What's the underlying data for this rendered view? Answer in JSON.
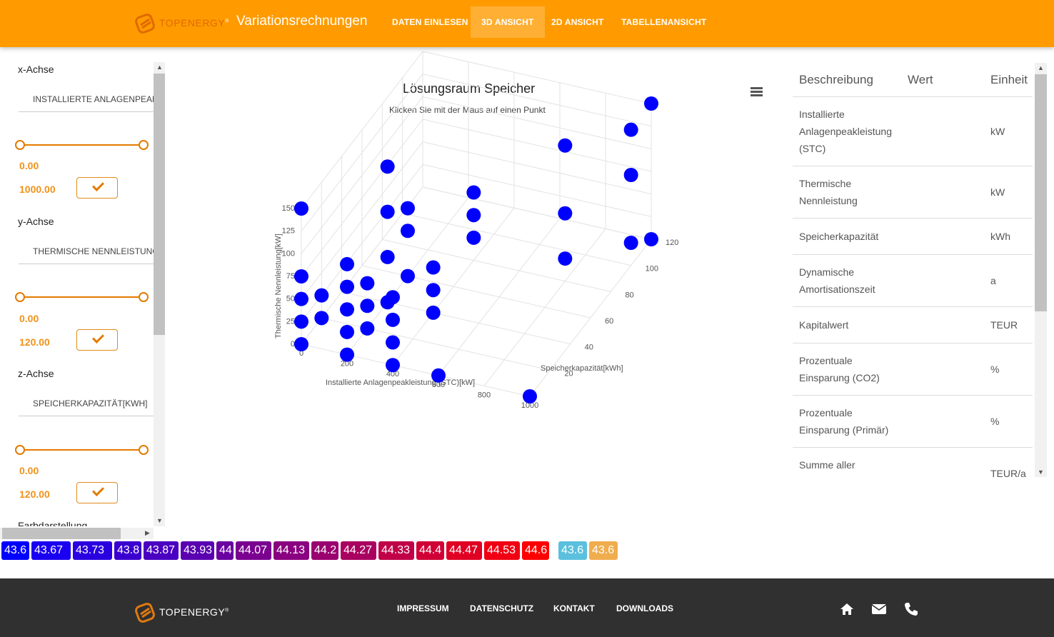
{
  "header": {
    "logo_text": "TOPENERGY",
    "logo_reg": "®",
    "title": "Variationsrechnungen",
    "nav": [
      {
        "label": "DATEN EINLESEN",
        "active": false
      },
      {
        "label": "3D ANSICHT",
        "active": true
      },
      {
        "label": "2D ANSICHT",
        "active": false
      },
      {
        "label": "TABELLENANSICHT",
        "active": false
      }
    ],
    "colors": {
      "brand": "#ff9b00",
      "accent": "#e37b00"
    }
  },
  "sidebar": {
    "x_axis": {
      "label": "x-Achse",
      "selected": "INSTALLIERTE ANLAGENPEAKLEISTUNG (STC)[KW]",
      "min": "0.00",
      "max": "1000.00"
    },
    "y_axis": {
      "label": "y-Achse",
      "selected": "THERMISCHE NENNLEISTUNG[KW]",
      "min": "0.00",
      "max": "120.00"
    },
    "z_axis": {
      "label": "z-Achse",
      "selected": "SPEICHERKAPAZITÄT[KWH]",
      "min": "0.00",
      "max": "120.00"
    },
    "color_section": "Farbdarstellung",
    "confirm_icon": "check-icon"
  },
  "chart": {
    "menu_icon": "hamburger-menu-icon"
  },
  "chart_data": {
    "type": "scatter",
    "title": "Lösungsraum Speicher",
    "subtitle": "Klicken Sie mit der Maus auf einen Punkt",
    "xlabel": "Installierte Anlagenpeakleistung (STC)[kW]",
    "ylabel": "Thermische Nennleistung[kW]",
    "zlabel": "Speicherkapazität[kWh]",
    "x_ticks": [
      "0",
      "200",
      "400",
      "600",
      "800",
      "1000"
    ],
    "y_ticks": [
      "0",
      "25",
      "50",
      "75",
      "100",
      "125",
      "150"
    ],
    "z_ticks": [
      "20",
      "40",
      "60",
      "80",
      "100",
      "120"
    ],
    "xlim": [
      0,
      1000
    ],
    "ylim": [
      0,
      150
    ],
    "zlim": [
      0,
      120
    ],
    "grid": true,
    "marker_color": "#0000ff",
    "series": [
      {
        "values": [
          {
            "x": 0,
            "y": 0,
            "z": 0
          },
          {
            "x": 0,
            "y": 25,
            "z": 0
          },
          {
            "x": 0,
            "y": 50,
            "z": 0
          },
          {
            "x": 0,
            "y": 75,
            "z": 0
          },
          {
            "x": 0,
            "y": 150,
            "z": 0
          },
          {
            "x": 200,
            "y": 0,
            "z": 0
          },
          {
            "x": 200,
            "y": 25,
            "z": 0
          },
          {
            "x": 200,
            "y": 50,
            "z": 0
          },
          {
            "x": 200,
            "y": 75,
            "z": 0
          },
          {
            "x": 200,
            "y": 100,
            "z": 0
          },
          {
            "x": 0,
            "y": 25,
            "z": 20
          },
          {
            "x": 0,
            "y": 0,
            "z": 20
          },
          {
            "x": 200,
            "y": 0,
            "z": 20
          },
          {
            "x": 200,
            "y": 25,
            "z": 20
          },
          {
            "x": 200,
            "y": 50,
            "z": 20
          },
          {
            "x": 400,
            "y": 0,
            "z": 0
          },
          {
            "x": 400,
            "y": 25,
            "z": 0
          },
          {
            "x": 400,
            "y": 50,
            "z": 0
          },
          {
            "x": 400,
            "y": 75,
            "z": 0
          },
          {
            "x": 200,
            "y": 0,
            "z": 40
          },
          {
            "x": 200,
            "y": 50,
            "z": 40
          },
          {
            "x": 200,
            "y": 100,
            "z": 40
          },
          {
            "x": 200,
            "y": 150,
            "z": 40
          },
          {
            "x": 200,
            "y": 0,
            "z": 60
          },
          {
            "x": 200,
            "y": 50,
            "z": 60
          },
          {
            "x": 200,
            "y": 75,
            "z": 60
          },
          {
            "x": 600,
            "y": 0,
            "z": 0
          },
          {
            "x": 1000,
            "y": 0,
            "z": 0
          },
          {
            "x": 400,
            "y": 0,
            "z": 40
          },
          {
            "x": 400,
            "y": 25,
            "z": 40
          },
          {
            "x": 400,
            "y": 50,
            "z": 40
          },
          {
            "x": 400,
            "y": 25,
            "z": 80
          },
          {
            "x": 400,
            "y": 50,
            "z": 80
          },
          {
            "x": 400,
            "y": 75,
            "z": 80
          },
          {
            "x": 800,
            "y": 25,
            "z": 80
          },
          {
            "x": 800,
            "y": 75,
            "z": 80
          },
          {
            "x": 800,
            "y": 150,
            "z": 80
          },
          {
            "x": 1000,
            "y": 25,
            "z": 100
          },
          {
            "x": 1000,
            "y": 100,
            "z": 100
          },
          {
            "x": 1000,
            "y": 150,
            "z": 100
          },
          {
            "x": 1000,
            "y": 0,
            "z": 120
          },
          {
            "x": 1000,
            "y": 150,
            "z": 120
          }
        ]
      }
    ]
  },
  "table": {
    "headers": [
      "Beschreibung",
      "Wert",
      "Einheit"
    ],
    "rows": [
      {
        "desc": [
          "Installierte",
          "Anlagenpeakleistung",
          "(STC)"
        ],
        "unit": "kW"
      },
      {
        "desc": [
          "Thermische",
          "Nennleistung"
        ],
        "unit": "kW"
      },
      {
        "desc": [
          "Speicherkapazität"
        ],
        "unit": "kWh"
      },
      {
        "desc": [
          "Dynamische",
          "Amortisationszeit"
        ],
        "unit": "a"
      },
      {
        "desc": [
          "Kapitalwert"
        ],
        "unit": "TEUR"
      },
      {
        "desc": [
          "Prozentuale",
          "Einsparung (CO2)"
        ],
        "unit": "%"
      },
      {
        "desc": [
          "Prozentuale",
          "Einsparung (Primär)"
        ],
        "unit": "%"
      },
      {
        "desc": [
          "Summe aller",
          "..."
        ],
        "unit": "TEUR/a"
      }
    ]
  },
  "color_legend": [
    {
      "label": "43.6",
      "color": "#0000ff"
    },
    {
      "label": "43.67",
      "color": "#1a00f0"
    },
    {
      "label": "43.73",
      "color": "#2a00e0"
    },
    {
      "label": "43.8",
      "color": "#3a00d0"
    },
    {
      "label": "43.87",
      "color": "#4a00c0"
    },
    {
      "label": "43.93",
      "color": "#5a00b0"
    },
    {
      "label": "44",
      "color": "#6a00a0"
    },
    {
      "label": "44.07",
      "color": "#7a0090"
    },
    {
      "label": "44.13",
      "color": "#8a0080"
    },
    {
      "label": "44.2",
      "color": "#9a0070"
    },
    {
      "label": "44.27",
      "color": "#aa0060"
    },
    {
      "label": "44.33",
      "color": "#c00048"
    },
    {
      "label": "44.4",
      "color": "#d00036"
    },
    {
      "label": "44.47",
      "color": "#e00024"
    },
    {
      "label": "44.53",
      "color": "#f00012"
    },
    {
      "label": "44.6",
      "color": "#ff0000"
    },
    {
      "label": "43.6",
      "color": "#5bc0de"
    },
    {
      "label": "43.6",
      "color": "#f0ad4e"
    }
  ],
  "footer": {
    "logo_text": "TOPENERGY",
    "logo_reg": "®",
    "links": [
      "IMPRESSUM",
      "DATENSCHUTZ",
      "KONTAKT",
      "DOWNLOADS"
    ],
    "icons": [
      "home-icon",
      "envelope-icon",
      "phone-icon"
    ]
  }
}
